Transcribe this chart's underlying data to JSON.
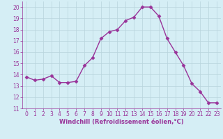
{
  "x": [
    0,
    1,
    2,
    3,
    4,
    5,
    6,
    7,
    8,
    9,
    10,
    11,
    12,
    13,
    14,
    15,
    16,
    17,
    18,
    19,
    20,
    21,
    22,
    23
  ],
  "y": [
    13.8,
    13.5,
    13.6,
    13.9,
    13.3,
    13.3,
    13.4,
    14.8,
    15.5,
    17.2,
    17.8,
    18.0,
    18.8,
    19.1,
    20.0,
    20.0,
    19.2,
    17.2,
    16.0,
    14.8,
    13.2,
    12.5,
    11.5,
    11.5
  ],
  "line_color": "#993399",
  "marker": "D",
  "marker_size": 2.5,
  "line_width": 1.0,
  "background_color": "#d5eef5",
  "grid_color": "#b8d4dc",
  "xlabel": "Windchill (Refroidissement éolien,°C)",
  "xlabel_color": "#993399",
  "tick_color": "#993399",
  "xlim": [
    -0.5,
    23.5
  ],
  "ylim": [
    11,
    20.5
  ],
  "yticks": [
    11,
    12,
    13,
    14,
    15,
    16,
    17,
    18,
    19,
    20
  ],
  "xticks": [
    0,
    1,
    2,
    3,
    4,
    5,
    6,
    7,
    8,
    9,
    10,
    11,
    12,
    13,
    14,
    15,
    16,
    17,
    18,
    19,
    20,
    21,
    22,
    23
  ],
  "tick_fontsize": 5.5,
  "xlabel_fontsize": 6.0
}
